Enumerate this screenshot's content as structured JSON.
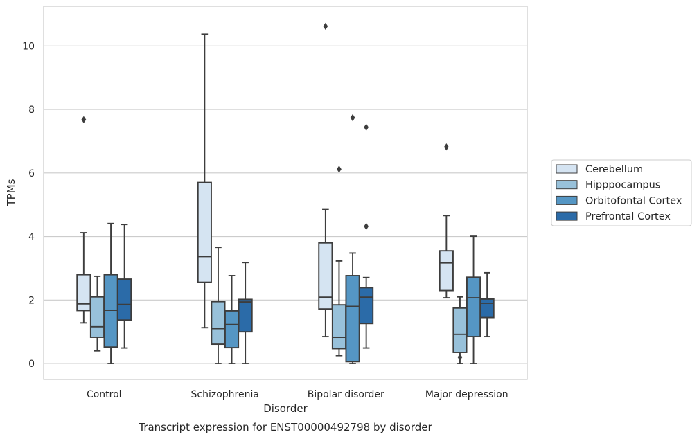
{
  "chart_data": {
    "type": "box",
    "xlabel": "Disorder",
    "ylabel": "TPMs",
    "caption": "Transcript expression for ENST00000492798 by disorder",
    "categories": [
      "Control",
      "Schizophrenia",
      "Bipolar disorder",
      "Major depression"
    ],
    "ylim": [
      -0.5,
      11.25
    ],
    "yticks": [
      0,
      2,
      4,
      6,
      8,
      10
    ],
    "grid": true,
    "legend_position": "right",
    "series": [
      {
        "name": "Cerebellum",
        "color": "#d5e4f2",
        "boxes": [
          {
            "whisker_low": 1.28,
            "q1": 1.67,
            "median": 1.88,
            "q3": 2.8,
            "whisker_high": 4.12,
            "outliers": [
              7.68
            ]
          },
          {
            "whisker_low": 1.13,
            "q1": 2.56,
            "median": 3.37,
            "q3": 5.7,
            "whisker_high": 10.37,
            "outliers": []
          },
          {
            "whisker_low": 0.85,
            "q1": 1.72,
            "median": 2.09,
            "q3": 3.8,
            "whisker_high": 4.85,
            "outliers": [
              10.62
            ]
          },
          {
            "whisker_low": 2.07,
            "q1": 2.3,
            "median": 3.17,
            "q3": 3.55,
            "whisker_high": 4.66,
            "outliers": [
              6.82
            ]
          }
        ]
      },
      {
        "name": "Hipppocampus",
        "color": "#98c1da",
        "boxes": [
          {
            "whisker_low": 0.4,
            "q1": 0.83,
            "median": 1.16,
            "q3": 2.1,
            "whisker_high": 2.75,
            "outliers": []
          },
          {
            "whisker_low": 0.0,
            "q1": 0.61,
            "median": 1.1,
            "q3": 1.95,
            "whisker_high": 3.66,
            "outliers": []
          },
          {
            "whisker_low": 0.25,
            "q1": 0.47,
            "median": 0.83,
            "q3": 1.85,
            "whisker_high": 3.23,
            "outliers": [
              6.12
            ]
          },
          {
            "whisker_low": 0.0,
            "q1": 0.35,
            "median": 0.92,
            "q3": 1.75,
            "whisker_high": 2.1,
            "outliers": [
              0.2
            ]
          }
        ]
      },
      {
        "name": "Orbitofontal Cortex",
        "color": "#5596c4",
        "boxes": [
          {
            "whisker_low": 0.0,
            "q1": 0.52,
            "median": 1.68,
            "q3": 2.8,
            "whisker_high": 4.41,
            "outliers": []
          },
          {
            "whisker_low": 0.0,
            "q1": 0.5,
            "median": 1.23,
            "q3": 1.66,
            "whisker_high": 2.77,
            "outliers": []
          },
          {
            "whisker_low": 0.0,
            "q1": 0.06,
            "median": 1.8,
            "q3": 2.77,
            "whisker_high": 3.48,
            "outliers": [
              7.74
            ]
          },
          {
            "whisker_low": 0.0,
            "q1": 0.85,
            "median": 2.07,
            "q3": 2.72,
            "whisker_high": 4.01,
            "outliers": []
          }
        ]
      },
      {
        "name": "Prefrontal Cortex",
        "color": "#2b6ba8",
        "boxes": [
          {
            "whisker_low": 0.49,
            "q1": 1.37,
            "median": 1.86,
            "q3": 2.66,
            "whisker_high": 4.38,
            "outliers": []
          },
          {
            "whisker_low": 0.0,
            "q1": 1.0,
            "median": 1.94,
            "q3": 2.02,
            "whisker_high": 3.18,
            "outliers": []
          },
          {
            "whisker_low": 0.49,
            "q1": 1.26,
            "median": 2.09,
            "q3": 2.39,
            "whisker_high": 2.71,
            "outliers": [
              7.44,
              4.32
            ]
          },
          {
            "whisker_low": 0.85,
            "q1": 1.45,
            "median": 1.9,
            "q3": 2.03,
            "whisker_high": 2.86,
            "outliers": []
          }
        ]
      }
    ]
  }
}
